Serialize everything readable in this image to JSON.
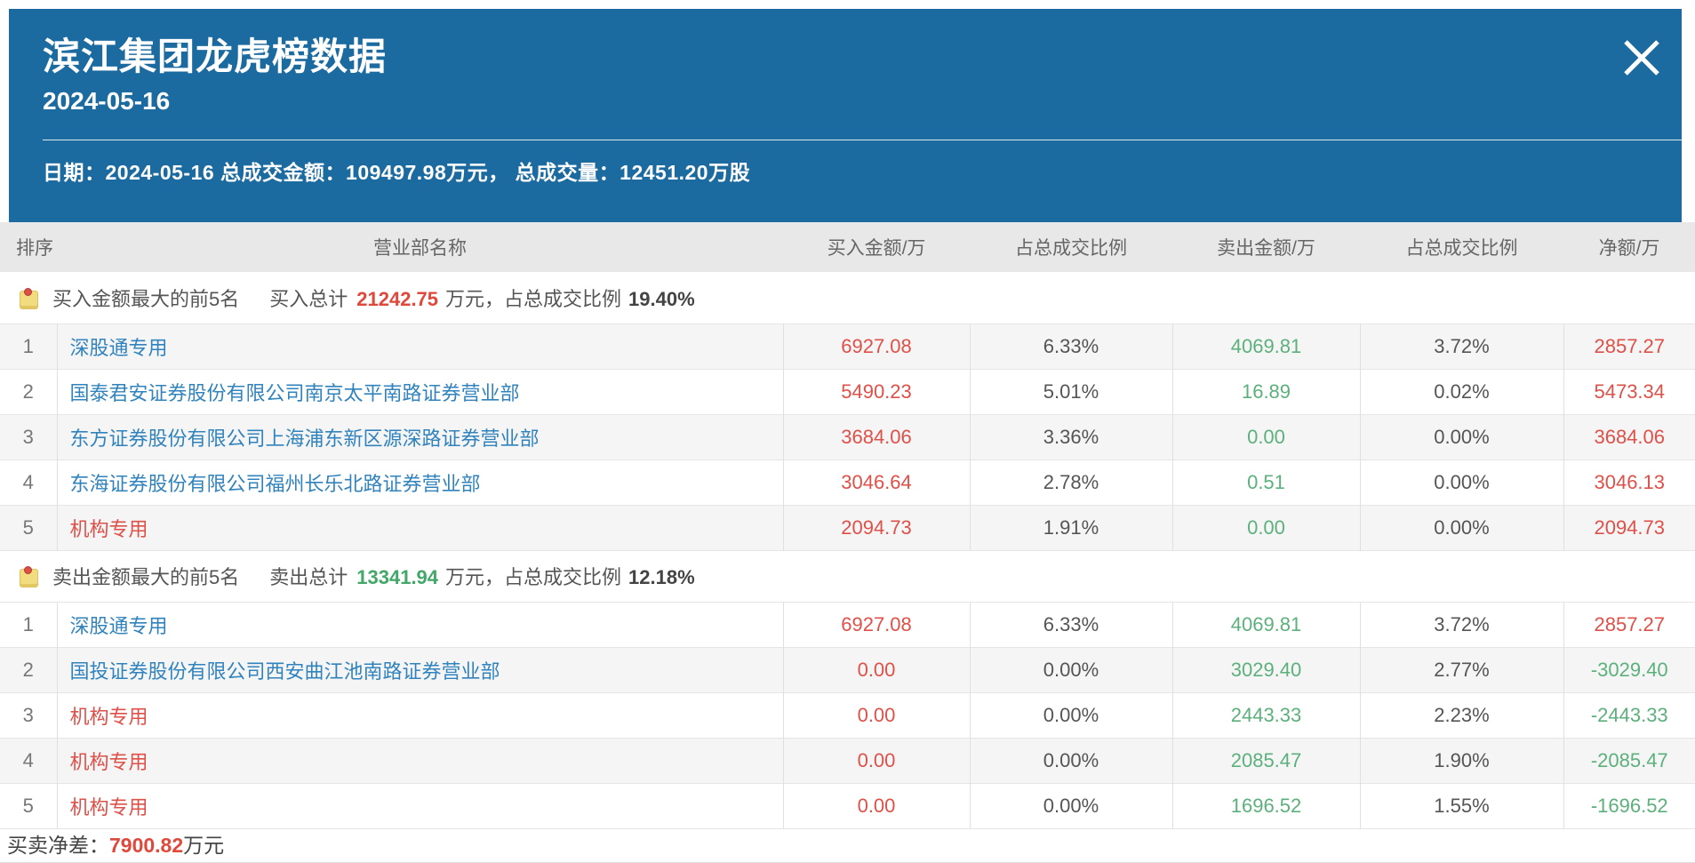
{
  "dialog": {
    "title": "滨江集团龙虎榜数据",
    "date": "2024-05-16",
    "summary": "日期：2024-05-16 总成交金额：109497.98万元， 总成交量：12451.20万股"
  },
  "columns": [
    "排序",
    "营业部名称",
    "买入金额/万",
    "占总成交比例",
    "卖出金额/万",
    "占总成交比例",
    "净额/万"
  ],
  "sections": [
    {
      "label": "买入金额最大的前5名",
      "total_label": "买入总计",
      "total_value": "21242.75",
      "total_suffix": "万元，占总成交比例",
      "total_pct": "19.40%",
      "total_color": "red",
      "rows": [
        {
          "rank": "1",
          "name": "深股通专用",
          "style": "link",
          "buy": "6927.08",
          "buy_pct": "6.33%",
          "sell": "4069.81",
          "sell_pct": "3.72%",
          "net": "2857.27"
        },
        {
          "rank": "2",
          "name": "国泰君安证券股份有限公司南京太平南路证券营业部",
          "style": "link",
          "buy": "5490.23",
          "buy_pct": "5.01%",
          "sell": "16.89",
          "sell_pct": "0.02%",
          "net": "5473.34"
        },
        {
          "rank": "3",
          "name": "东方证券股份有限公司上海浦东新区源深路证券营业部",
          "style": "link",
          "buy": "3684.06",
          "buy_pct": "3.36%",
          "sell": "0.00",
          "sell_pct": "0.00%",
          "net": "3684.06"
        },
        {
          "rank": "4",
          "name": "东海证券股份有限公司福州长乐北路证券营业部",
          "style": "link",
          "buy": "3046.64",
          "buy_pct": "2.78%",
          "sell": "0.51",
          "sell_pct": "0.00%",
          "net": "3046.13"
        },
        {
          "rank": "5",
          "name": "机构专用",
          "style": "inst",
          "buy": "2094.73",
          "buy_pct": "1.91%",
          "sell": "0.00",
          "sell_pct": "0.00%",
          "net": "2094.73"
        }
      ]
    },
    {
      "label": "卖出金额最大的前5名",
      "total_label": "卖出总计",
      "total_value": "13341.94",
      "total_suffix": "万元，占总成交比例",
      "total_pct": "12.18%",
      "total_color": "green",
      "rows": [
        {
          "rank": "1",
          "name": "深股通专用",
          "style": "link",
          "buy": "6927.08",
          "buy_pct": "6.33%",
          "sell": "4069.81",
          "sell_pct": "3.72%",
          "net": "2857.27"
        },
        {
          "rank": "2",
          "name": "国投证券股份有限公司西安曲江池南路证券营业部",
          "style": "link",
          "buy": "0.00",
          "buy_pct": "0.00%",
          "sell": "3029.40",
          "sell_pct": "2.77%",
          "net": "-3029.40"
        },
        {
          "rank": "3",
          "name": "机构专用",
          "style": "inst",
          "buy": "0.00",
          "buy_pct": "0.00%",
          "sell": "2443.33",
          "sell_pct": "2.23%",
          "net": "-2443.33"
        },
        {
          "rank": "4",
          "name": "机构专用",
          "style": "inst",
          "buy": "0.00",
          "buy_pct": "0.00%",
          "sell": "2085.47",
          "sell_pct": "1.90%",
          "net": "-2085.47"
        },
        {
          "rank": "5",
          "name": "机构专用",
          "style": "inst",
          "buy": "0.00",
          "buy_pct": "0.00%",
          "sell": "1696.52",
          "sell_pct": "1.55%",
          "net": "-1696.52"
        }
      ]
    }
  ],
  "footer": {
    "label": "买卖净差：",
    "value": "7900.82",
    "unit": "万元"
  },
  "colors": {
    "header_blue": "#1c6ba0",
    "buy_red": "#df5048",
    "sell_green": "#5cb07c",
    "link_blue": "#3183bd"
  }
}
